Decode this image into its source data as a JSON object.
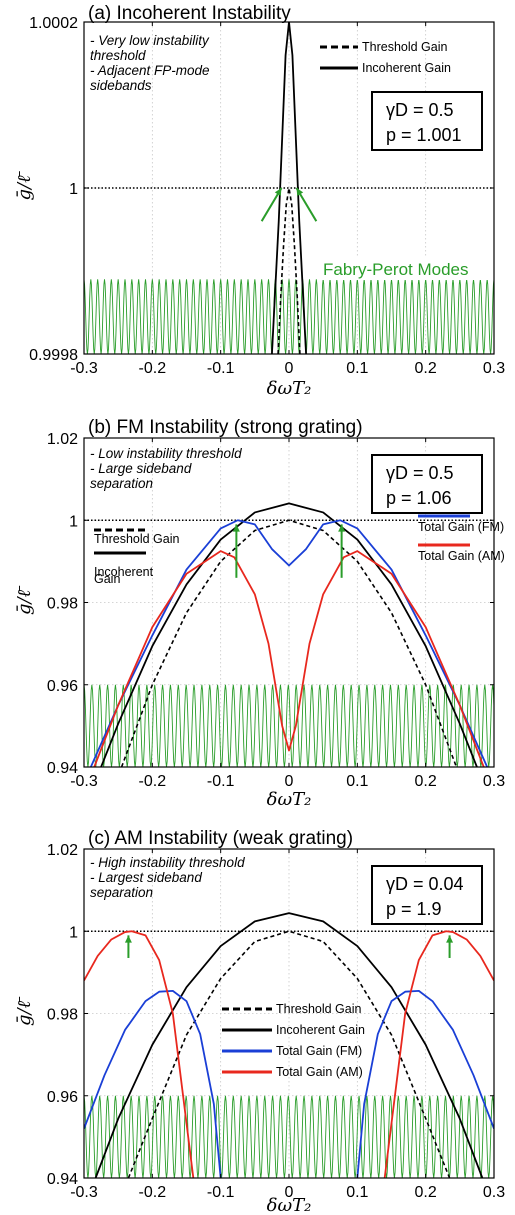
{
  "chart_data": [
    {
      "type": "line",
      "title": "(a) Incoherent Instability",
      "xlabel": "δωT₂",
      "ylabel": "ḡ/ℓ̄",
      "xlim": [
        -0.3,
        0.3
      ],
      "ylim": [
        0.9998,
        1.0002
      ],
      "xticks": [
        -0.3,
        -0.2,
        -0.1,
        0,
        0.1,
        0.2,
        0.3
      ],
      "xtick_labels": [
        "-0.3",
        "-0.2",
        "-0.1",
        "0",
        "0.1",
        "0.2",
        "0.3"
      ],
      "yticks": [
        0.9998,
        1,
        1.0002
      ],
      "ytick_labels": [
        "0.9998",
        "1",
        "1.0002"
      ],
      "grid": true,
      "threshold_line": 1,
      "notes": [
        "- Very low instability",
        "  threshold",
        "- Adjacent FP-mode",
        "  sidebands"
      ],
      "legend": [
        {
          "label": "Threshold Gain",
          "style": "dashed",
          "color": "#000000"
        },
        {
          "label": "Incoherent Gain",
          "style": "solid",
          "color": "#000000"
        }
      ],
      "legend_position": "top-right",
      "params": [
        "γD  = 0.5",
        "p  = 1.001"
      ],
      "fp_label": "Fabry-Perot Modes",
      "fp_modes": {
        "top": 0.99989,
        "bottom": 0.9998,
        "period": 0.01,
        "color": "#2a9d2a"
      },
      "series": [
        {
          "name": "Incoherent Gain",
          "style": "solid",
          "color": "#000000",
          "x": [
            -0.025,
            -0.02,
            -0.015,
            -0.01,
            -0.005,
            0,
            0.005,
            0.01,
            0.015,
            0.02,
            0.025
          ],
          "y": [
            0.9998,
            0.99988,
            0.99996,
            1.00006,
            1.00016,
            1.0002,
            1.00016,
            1.00006,
            0.99996,
            0.99988,
            0.9998
          ]
        },
        {
          "name": "Threshold Gain",
          "style": "dashed",
          "color": "#000000",
          "x": [
            -0.016,
            -0.012,
            -0.008,
            -0.004,
            0,
            0.004,
            0.008,
            0.012,
            0.016
          ],
          "y": [
            0.9998,
            0.99987,
            0.99993,
            0.99998,
            1.0,
            0.99998,
            0.99993,
            0.99987,
            0.9998
          ]
        }
      ],
      "arrows": [
        {
          "from": [
            -0.04,
            0.99996
          ],
          "to": [
            -0.011,
            1.0
          ]
        },
        {
          "from": [
            0.04,
            0.99996
          ],
          "to": [
            0.011,
            1.0
          ]
        }
      ]
    },
    {
      "type": "line",
      "title": "(b) FM Instability (strong grating)",
      "xlabel": "δωT₂",
      "ylabel": "ḡ/ℓ̄",
      "xlim": [
        -0.3,
        0.3
      ],
      "ylim": [
        0.94,
        1.02
      ],
      "xticks": [
        -0.3,
        -0.2,
        -0.1,
        0,
        0.1,
        0.2,
        0.3
      ],
      "xtick_labels": [
        "-0.3",
        "-0.2",
        "-0.1",
        "0",
        "0.1",
        "0.2",
        "0.3"
      ],
      "yticks": [
        0.94,
        0.96,
        0.98,
        1,
        1.02
      ],
      "ytick_labels": [
        "0.94",
        "0.96",
        "0.98",
        "1",
        "1.02"
      ],
      "grid": true,
      "threshold_line": 1,
      "notes": [
        "- Low instability threshold",
        "- Large sideband",
        "  separation"
      ],
      "legend": [
        {
          "label": "Threshold Gain",
          "style": "dashed",
          "color": "#000000"
        },
        {
          "label": "Incoherent",
          "style": "solid",
          "color": "#000000"
        },
        {
          "label": "Gain",
          "style": "none",
          "color": "#000000"
        },
        {
          "label": "Total Gain (FM)",
          "style": "solid",
          "color": "#1a3fd6"
        },
        {
          "label": "Total Gain (AM)",
          "style": "solid",
          "color": "#e8281e"
        }
      ],
      "legend_position": "split left and right",
      "params": [
        "γD  = 0.5",
        "p  = 1.06"
      ],
      "fp_modes": {
        "top": 0.96,
        "bottom": 0.94,
        "period": 0.0115,
        "color": "#2a9d2a"
      },
      "series": [
        {
          "name": "Incoherent Gain",
          "style": "solid",
          "color": "#000000",
          "x": [
            -0.275,
            -0.25,
            -0.2,
            -0.15,
            -0.1,
            -0.05,
            0,
            0.05,
            0.1,
            0.15,
            0.2,
            0.25,
            0.275
          ],
          "y": [
            0.94,
            0.9505,
            0.9694,
            0.9844,
            0.9953,
            1.0019,
            1.0041,
            1.0019,
            0.9953,
            0.9844,
            0.9694,
            0.9505,
            0.94
          ]
        },
        {
          "name": "Threshold Gain",
          "style": "dashed",
          "color": "#000000",
          "x": [
            -0.245,
            -0.2,
            -0.15,
            -0.1,
            -0.05,
            0,
            0.05,
            0.1,
            0.15,
            0.2,
            0.245
          ],
          "y": [
            0.94,
            0.96,
            0.9775,
            0.99,
            0.9975,
            1.0,
            0.9975,
            0.99,
            0.9775,
            0.96,
            0.94
          ]
        },
        {
          "name": "Total Gain (FM)",
          "style": "solid",
          "color": "#1a3fd6",
          "x": [
            -0.29,
            -0.25,
            -0.2,
            -0.15,
            -0.1,
            -0.075,
            -0.05,
            -0.025,
            0,
            0.025,
            0.05,
            0.075,
            0.1,
            0.15,
            0.2,
            0.25,
            0.29
          ],
          "y": [
            0.94,
            0.955,
            0.972,
            0.988,
            0.998,
            1.0,
            0.999,
            0.993,
            0.989,
            0.993,
            0.999,
            1.0,
            0.998,
            0.988,
            0.972,
            0.955,
            0.94
          ]
        },
        {
          "name": "Total Gain (AM)",
          "style": "solid",
          "color": "#e8281e",
          "x": [
            -0.285,
            -0.25,
            -0.2,
            -0.15,
            -0.1,
            -0.08,
            -0.05,
            -0.03,
            -0.01,
            0,
            0.01,
            0.03,
            0.05,
            0.08,
            0.1,
            0.15,
            0.2,
            0.25,
            0.285
          ],
          "y": [
            0.94,
            0.955,
            0.974,
            0.987,
            0.9925,
            0.991,
            0.982,
            0.97,
            0.95,
            0.944,
            0.95,
            0.97,
            0.982,
            0.991,
            0.9925,
            0.987,
            0.974,
            0.955,
            0.94
          ]
        }
      ],
      "arrows": [
        {
          "from": [
            -0.077,
            0.986
          ],
          "to": [
            -0.077,
            0.999
          ]
        },
        {
          "from": [
            0.077,
            0.986
          ],
          "to": [
            0.077,
            0.999
          ]
        }
      ]
    },
    {
      "type": "line",
      "title": "(c) AM Instability (weak grating)",
      "xlabel": "δωT₂",
      "ylabel": "ḡ/ℓ̄",
      "xlim": [
        -0.3,
        0.3
      ],
      "ylim": [
        0.94,
        1.02
      ],
      "xticks": [
        -0.3,
        -0.2,
        -0.1,
        0,
        0.1,
        0.2,
        0.3
      ],
      "xtick_labels": [
        "-0.3",
        "-0.2",
        "-0.1",
        "0",
        "0.1",
        "0.2",
        "0.3"
      ],
      "yticks": [
        0.94,
        0.96,
        0.98,
        1,
        1.02
      ],
      "ytick_labels": [
        "0.94",
        "0.96",
        "0.98",
        "1",
        "1.02"
      ],
      "grid": true,
      "threshold_line": 1,
      "notes": [
        "- High instability threshold",
        "- Largest sideband",
        "  separation"
      ],
      "legend": [
        {
          "label": "Threshold Gain",
          "style": "dashed",
          "color": "#000000"
        },
        {
          "label": "Incoherent Gain",
          "style": "solid",
          "color": "#000000"
        },
        {
          "label": "Total Gain (FM)",
          "style": "solid",
          "color": "#1a3fd6"
        },
        {
          "label": "Total Gain (AM)",
          "style": "solid",
          "color": "#e8281e"
        }
      ],
      "legend_position": "center",
      "params": [
        "γD  = 0.04",
        "p  = 1.9"
      ],
      "fp_modes": {
        "top": 0.96,
        "bottom": 0.94,
        "period": 0.0115,
        "color": "#2a9d2a"
      },
      "series": [
        {
          "name": "Incoherent Gain",
          "style": "solid",
          "color": "#000000",
          "x": [
            -0.283,
            -0.25,
            -0.2,
            -0.15,
            -0.1,
            -0.05,
            0,
            0.05,
            0.1,
            0.15,
            0.2,
            0.25,
            0.283
          ],
          "y": [
            0.94,
            0.9544,
            0.9724,
            0.9864,
            0.9964,
            1.0024,
            1.0044,
            1.0024,
            0.9964,
            0.9864,
            0.9724,
            0.9544,
            0.94
          ]
        },
        {
          "name": "Threshold Gain",
          "style": "dashed",
          "color": "#000000",
          "x": [
            -0.235,
            -0.2,
            -0.15,
            -0.1,
            -0.05,
            0,
            0.05,
            0.1,
            0.15,
            0.2,
            0.235
          ],
          "y": [
            0.94,
            0.9545,
            0.9748,
            0.9885,
            0.9975,
            1.0,
            0.9975,
            0.9885,
            0.9748,
            0.9545,
            0.94
          ]
        },
        {
          "name": "Total Gain (FM)",
          "style": "solid",
          "color": "#1a3fd6",
          "x": [
            -0.3,
            -0.27,
            -0.24,
            -0.21,
            -0.19,
            -0.17,
            -0.15,
            -0.13,
            -0.11,
            -0.1
          ],
          "y": [
            0.952,
            0.965,
            0.976,
            0.983,
            0.9853,
            0.9855,
            0.983,
            0.975,
            0.958,
            0.94
          ]
        },
        {
          "name": "Total Gain (FM)",
          "style": "solid",
          "color": "#1a3fd6",
          "x": [
            0.1,
            0.11,
            0.13,
            0.15,
            0.17,
            0.19,
            0.21,
            0.24,
            0.27,
            0.3
          ],
          "y": [
            0.94,
            0.958,
            0.975,
            0.983,
            0.9853,
            0.9855,
            0.983,
            0.976,
            0.965,
            0.952
          ]
        },
        {
          "name": "Total Gain (AM)",
          "style": "solid",
          "color": "#e8281e",
          "x": [
            -0.3,
            -0.28,
            -0.26,
            -0.24,
            -0.23,
            -0.21,
            -0.19,
            -0.17,
            -0.155,
            -0.14
          ],
          "y": [
            0.988,
            0.994,
            0.998,
            0.9998,
            1.0,
            0.999,
            0.993,
            0.98,
            0.96,
            0.94
          ]
        },
        {
          "name": "Total Gain (AM)",
          "style": "solid",
          "color": "#e8281e",
          "x": [
            0.14,
            0.155,
            0.17,
            0.19,
            0.21,
            0.23,
            0.24,
            0.26,
            0.28,
            0.3
          ],
          "y": [
            0.94,
            0.96,
            0.98,
            0.993,
            0.999,
            1.0,
            0.9998,
            0.998,
            0.994,
            0.988
          ]
        }
      ],
      "arrows": [
        {
          "from": [
            -0.235,
            0.9935
          ],
          "to": [
            -0.235,
            0.999
          ]
        },
        {
          "from": [
            0.235,
            0.9935
          ],
          "to": [
            0.235,
            0.999
          ]
        }
      ]
    }
  ]
}
